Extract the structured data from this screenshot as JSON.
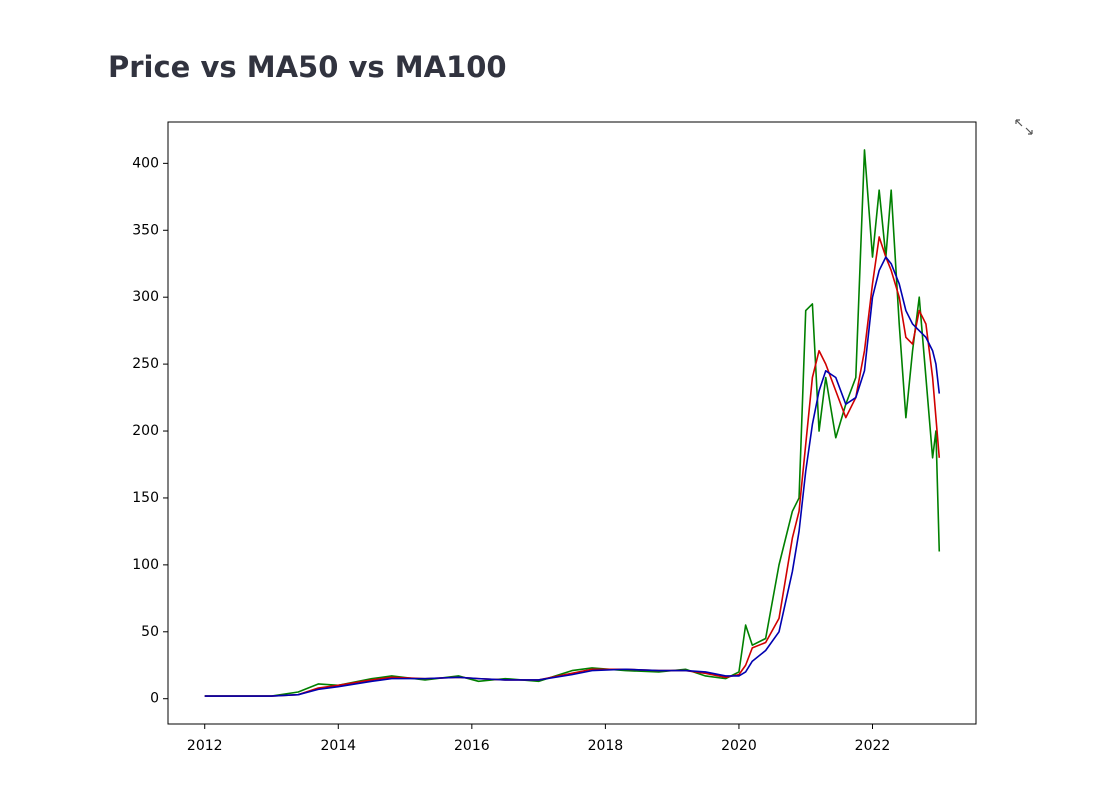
{
  "chart_data": {
    "type": "line",
    "title": "Price vs MA50 vs MA100",
    "x": [
      2012.0,
      2012.5,
      2013.0,
      2013.4,
      2013.7,
      2014.0,
      2014.5,
      2014.8,
      2015.3,
      2015.8,
      2016.1,
      2016.5,
      2017.0,
      2017.5,
      2017.8,
      2018.3,
      2018.8,
      2019.2,
      2019.5,
      2019.8,
      2020.0,
      2020.1,
      2020.2,
      2020.4,
      2020.6,
      2020.8,
      2020.9,
      2021.0,
      2021.1,
      2021.2,
      2021.3,
      2021.45,
      2021.6,
      2021.75,
      2021.88,
      2022.0,
      2022.1,
      2022.2,
      2022.28,
      2022.4,
      2022.5,
      2022.6,
      2022.7,
      2022.8,
      2022.9,
      2022.95,
      2023.0
    ],
    "series": [
      {
        "color": "#008000",
        "values": [
          2,
          2,
          2,
          5,
          11,
          10,
          15,
          17,
          14,
          17,
          13,
          15,
          13,
          21,
          23,
          21,
          20,
          22,
          17,
          15,
          20,
          55,
          40,
          45,
          100,
          140,
          150,
          290,
          295,
          200,
          240,
          195,
          220,
          240,
          410,
          330,
          380,
          330,
          380,
          280,
          210,
          260,
          300,
          240,
          180,
          200,
          110
        ]
      },
      {
        "color": "#d00000",
        "values": [
          2,
          2,
          2,
          3,
          8,
          10,
          14,
          16,
          15,
          16,
          15,
          14,
          14,
          19,
          22,
          22,
          21,
          21,
          19,
          16,
          18,
          25,
          38,
          42,
          60,
          120,
          140,
          190,
          240,
          260,
          250,
          230,
          210,
          225,
          260,
          310,
          345,
          330,
          320,
          300,
          270,
          265,
          290,
          280,
          240,
          210,
          180
        ]
      },
      {
        "color": "#0000b0",
        "values": [
          2,
          2,
          2,
          3,
          7,
          9,
          13,
          15,
          15,
          16,
          15,
          14,
          14,
          18,
          21,
          22,
          21,
          21,
          20,
          17,
          17,
          20,
          28,
          36,
          50,
          95,
          125,
          170,
          205,
          230,
          245,
          240,
          220,
          225,
          245,
          300,
          320,
          330,
          325,
          310,
          290,
          280,
          275,
          270,
          260,
          250,
          228
        ]
      }
    ],
    "xlim": [
      2011.45,
      2023.55
    ],
    "xticks": [
      2012,
      2014,
      2016,
      2018,
      2020,
      2022
    ],
    "ylim": [
      -18.9,
      430.9
    ],
    "yticks": [
      0,
      50,
      100,
      150,
      200,
      250,
      300,
      350,
      400
    ]
  }
}
